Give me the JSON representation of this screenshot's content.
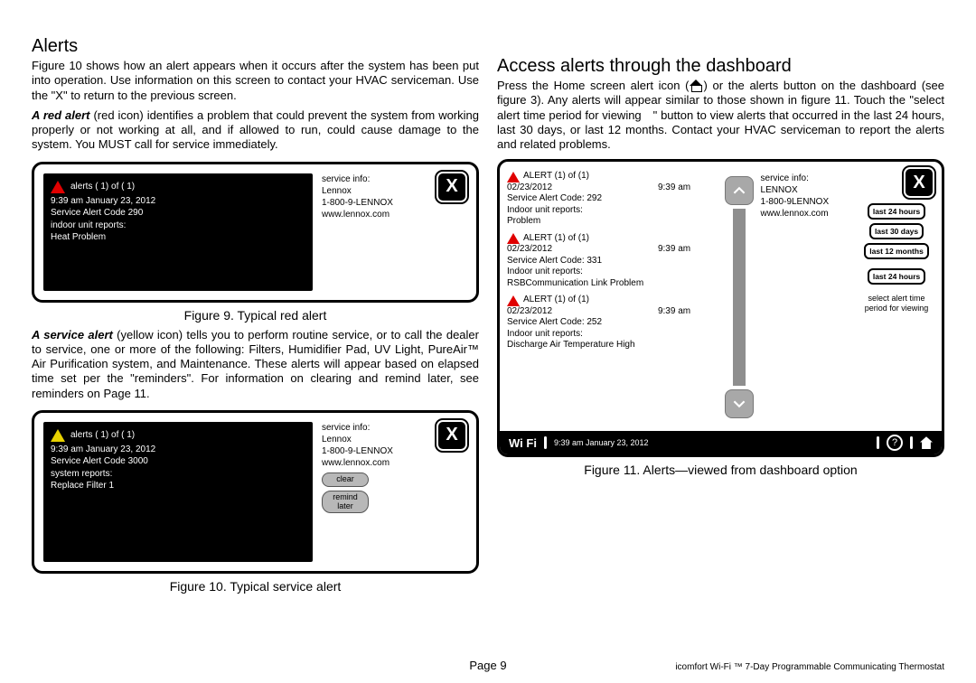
{
  "left": {
    "heading": "Alerts",
    "intro": "Figure 10 shows how an alert appears when it occurs after the system has been put into operation. Use information on this screen to contact your HVAC serviceman. Use the \"X\" to return to the previous screen.",
    "red_para": " (red icon) identifies a problem that could prevent the system from working properly or not working at all, and if allowed to run, could cause damage to the system. You MUST call for service immediately.",
    "red_lead": "A red alert",
    "svc_para": " (yellow icon) tells you to perform routine service, or to call the dealer to service, one or more of the following: Filters, Humidifier Pad, UV Light, PureAir™ Air Purification system, and Maintenance. These alerts will appear based on elapsed time set per the \"reminders\". For information on clearing and remind later, see reminders on Page 11.",
    "svc_lead": "A service alert",
    "fig9": {
      "caption": "Figure 9. Typical red alert",
      "counter": "alerts ( 1) of ( 1)",
      "ts": "9:39 am January 23, 2012",
      "code": "Service Alert Code 290",
      "unit": "indoor unit reports:",
      "msg": "Heat Problem",
      "svc_label": "service info:",
      "svc_name": "Lennox",
      "svc_phone": "1-800-9-LENNOX",
      "svc_url": "www.lennox.com"
    },
    "fig10": {
      "caption": "Figure 10. Typical service alert",
      "counter": "alerts ( 1) of ( 1)",
      "ts": "9:39 am January 23, 2012",
      "code": "Service Alert Code 3000",
      "unit": "system reports:",
      "msg": "Replace Filter 1",
      "svc_label": "service info:",
      "svc_name": "Lennox",
      "svc_phone": "1-800-9-LENNOX",
      "svc_url": "www.lennox.com",
      "btn_clear": "clear",
      "btn_remind": "remind later"
    }
  },
  "right": {
    "heading": "Access alerts through the dashboard",
    "intro_a": "Press the Home screen alert icon (",
    "intro_b": ") or the alerts  button on the dashboard (see figure 3). Any alerts will appear similar to those shown in figure 11. Touch the \"select alert time period for viewing \" button to view alerts that occurred in the last 24 hours, last 30 days, or last 12 months. Contact your HVAC serviceman to report the alerts and related problems.",
    "fig11": {
      "caption": "Figure 11. Alerts—viewed from dashboard option",
      "svc_label": "service info:",
      "svc_name": "LENNOX",
      "svc_phone": "1-800-9LENNOX",
      "svc_url": "www.lennox.com",
      "periods": [
        "last 24 hours",
        "last 30 days",
        "last 12 months",
        "last 24 hours"
      ],
      "period_label": "select alert time period for viewing",
      "wifi": "Wi Fi",
      "footer_ts": "9:39 am January 23, 2012",
      "alerts": [
        {
          "hdr": "ALERT (1) of (1)",
          "date": "02/23/2012",
          "time": "9:39 am",
          "code": "Service Alert Code: 292",
          "unit": "Indoor unit reports:",
          "msg": "Problem"
        },
        {
          "hdr": "ALERT (1) of (1)",
          "date": "02/23/2012",
          "time": "9:39 am",
          "code": "Service Alert Code: 331",
          "unit": "Indoor unit reports:",
          "msg": "RSBCommunication Link Problem"
        },
        {
          "hdr": "ALERT (1) of (1)",
          "date": "02/23/2012",
          "time": "9:39 am",
          "code": "Service Alert Code: 252",
          "unit": "Indoor unit reports:",
          "msg": "Discharge Air Temperature High"
        }
      ]
    }
  },
  "footer": {
    "page": "Page 9",
    "product": "icomfort Wi-Fi ™ 7-Day Programmable Communicating Thermostat"
  }
}
